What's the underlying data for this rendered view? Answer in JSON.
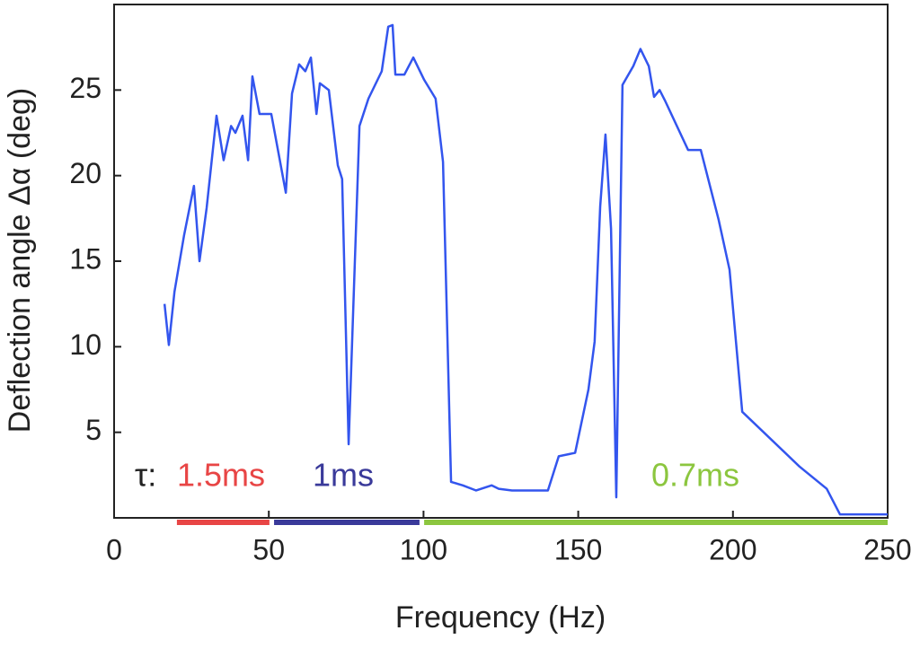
{
  "chart_data": {
    "type": "line",
    "xlabel": "Frequency (Hz)",
    "ylabel": "Deflection angle Δα (deg)",
    "xlim": [
      0,
      250
    ],
    "ylim": [
      0,
      30
    ],
    "xticks": [
      0,
      50,
      100,
      150,
      200,
      250
    ],
    "yticks": [
      5,
      10,
      15,
      20,
      25
    ],
    "series": [
      {
        "color": "#3355ee",
        "x": [
          16.3,
          17.7,
          19.5,
          22.6,
          25.8,
          27.6,
          29.9,
          33.1,
          35.4,
          37.8,
          39.2,
          41.5,
          43.3,
          44.7,
          47.0,
          50.8,
          55.5,
          57.5,
          59.8,
          61.8,
          63.6,
          65.4,
          66.5,
          69.4,
          72.3,
          73.7,
          75.8,
          79.3,
          82.2,
          86.5,
          88.6,
          90.0,
          90.9,
          93.8,
          96.7,
          100.2,
          103.9,
          106.3,
          108.9,
          112.7,
          117.0,
          122.0,
          124.3,
          128.6,
          140.2,
          143.7,
          149.0,
          153.3,
          155.3,
          157.1,
          158.8,
          160.6,
          162.3,
          164.3,
          167.8,
          170.1,
          172.8,
          174.5,
          176.3,
          178.0,
          185.5,
          189.6,
          195.4,
          198.9,
          203.0,
          221.5,
          230.3,
          234.6,
          250
        ],
        "values": [
          12.5,
          10.1,
          13.2,
          16.5,
          19.4,
          15.0,
          18.1,
          23.5,
          20.9,
          22.9,
          22.5,
          23.5,
          20.9,
          25.8,
          23.6,
          23.6,
          19.0,
          24.8,
          26.5,
          26.1,
          26.9,
          23.6,
          25.4,
          25.0,
          20.6,
          19.8,
          4.3,
          22.9,
          24.5,
          26.1,
          28.7,
          28.8,
          25.9,
          25.9,
          26.9,
          25.6,
          24.5,
          20.8,
          2.1,
          1.9,
          1.6,
          1.9,
          1.7,
          1.6,
          1.6,
          3.6,
          3.8,
          7.5,
          10.3,
          18.2,
          22.4,
          16.9,
          1.2,
          25.3,
          26.4,
          27.4,
          26.4,
          24.6,
          25.0,
          24.4,
          21.5,
          21.5,
          17.4,
          14.5,
          6.2,
          3.0,
          1.7,
          0.2,
          0.2
        ]
      }
    ],
    "annotation_prefix": "τ:",
    "bands": [
      {
        "label": "1.5ms",
        "color": "#e84545",
        "start": 20.3,
        "end": 50.2
      },
      {
        "label": "1ms",
        "color": "#3a3a9a",
        "start": 51.7,
        "end": 98.7
      },
      {
        "label": "0.7ms",
        "color": "#8cc63f",
        "start": 100.2,
        "end": 250
      }
    ]
  }
}
